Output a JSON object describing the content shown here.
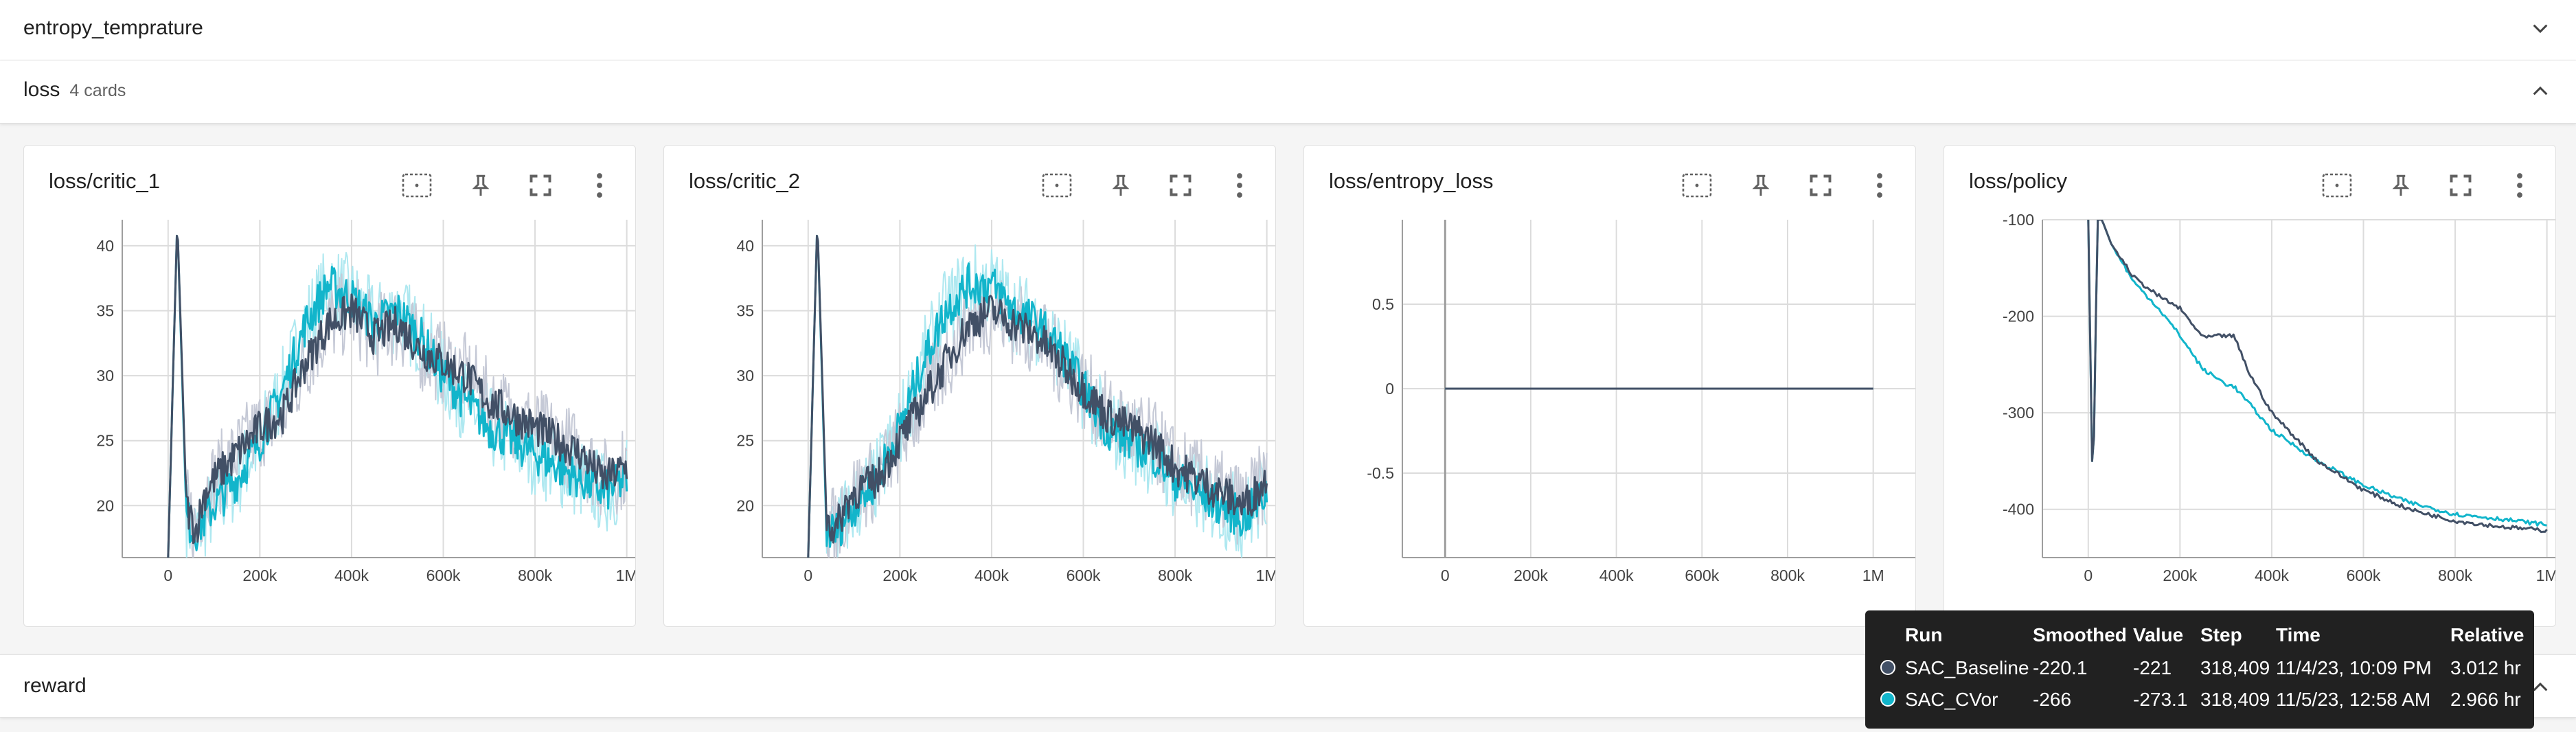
{
  "sections": {
    "entropy": {
      "title": "entropy_temprature"
    },
    "loss": {
      "title": "loss",
      "count": "4 cards"
    },
    "reward": {
      "title": "reward"
    }
  },
  "colors": {
    "baseline": "#425066",
    "baseline_raw": "#c5c9d6",
    "cvor": "#12b5cb",
    "cvor_raw": "#aee8f0",
    "grid": "#dcdcdc",
    "axis": "#9e9e9e"
  },
  "icons": [
    "fit-domain-icon",
    "pin-icon",
    "fullscreen-icon",
    "more-vert-icon",
    "chevron-down-icon",
    "chevron-up-icon"
  ],
  "cards": [
    {
      "title": "loss/critic_1"
    },
    {
      "title": "loss/critic_2"
    },
    {
      "title": "loss/entropy_loss"
    },
    {
      "title": "loss/policy"
    }
  ],
  "chart_data": [
    {
      "type": "line",
      "title": "loss/critic_1",
      "x_ticks": [
        "0",
        "200k",
        "400k",
        "600k",
        "800k",
        "1M"
      ],
      "y_ticks": [
        "20",
        "25",
        "30",
        "35",
        "40"
      ],
      "xlim": [
        -100000,
        1020000
      ],
      "ylim": [
        16,
        42
      ],
      "series": [
        {
          "name": "SAC_Baseline",
          "x": [
            0,
            20000,
            40000,
            60000,
            80000,
            100000,
            150000,
            200000,
            250000,
            300000,
            350000,
            400000,
            450000,
            500000,
            550000,
            600000,
            650000,
            700000,
            750000,
            800000,
            850000,
            900000,
            950000,
            1000000
          ],
          "y": [
            16,
            42,
            20,
            18,
            21,
            22,
            24,
            26,
            27,
            31,
            34,
            35,
            33,
            34,
            32,
            31,
            30,
            28,
            27,
            26,
            25,
            24,
            22,
            23
          ]
        },
        {
          "name": "SAC_CVor",
          "x": [
            0,
            20000,
            40000,
            60000,
            80000,
            100000,
            150000,
            200000,
            250000,
            300000,
            350000,
            400000,
            450000,
            500000,
            550000,
            600000,
            650000,
            700000,
            750000,
            800000,
            850000,
            900000,
            950000,
            1000000
          ],
          "y": [
            16,
            42,
            19,
            18,
            19,
            20,
            22,
            25,
            29,
            34,
            37,
            36,
            34,
            35,
            33,
            30,
            28,
            26,
            25,
            24,
            23,
            22,
            21,
            22
          ]
        }
      ]
    },
    {
      "type": "line",
      "title": "loss/critic_2",
      "x_ticks": [
        "0",
        "200k",
        "400k",
        "600k",
        "800k",
        "1M"
      ],
      "y_ticks": [
        "20",
        "25",
        "30",
        "35",
        "40"
      ],
      "xlim": [
        -100000,
        1020000
      ],
      "ylim": [
        16,
        42
      ],
      "series": [
        {
          "name": "SAC_Baseline",
          "x": [
            0,
            20000,
            40000,
            60000,
            80000,
            100000,
            150000,
            200000,
            250000,
            300000,
            350000,
            400000,
            450000,
            500000,
            550000,
            600000,
            650000,
            700000,
            750000,
            800000,
            850000,
            900000,
            950000,
            1000000
          ],
          "y": [
            16,
            42,
            19,
            18,
            20,
            21,
            22,
            25,
            28,
            31,
            34,
            35,
            34,
            33,
            31,
            29,
            27,
            26,
            25,
            23,
            22,
            21,
            20,
            22
          ]
        },
        {
          "name": "SAC_CVor",
          "x": [
            0,
            20000,
            40000,
            60000,
            80000,
            100000,
            150000,
            200000,
            250000,
            300000,
            350000,
            400000,
            450000,
            500000,
            550000,
            600000,
            650000,
            700000,
            750000,
            800000,
            850000,
            900000,
            950000,
            1000000
          ],
          "y": [
            16,
            42,
            18,
            18,
            19,
            20,
            22,
            26,
            31,
            35,
            37,
            37,
            35,
            34,
            32,
            29,
            26,
            25,
            24,
            22,
            21,
            20,
            19,
            21
          ]
        }
      ]
    },
    {
      "type": "line",
      "title": "loss/entropy_loss",
      "x_ticks": [
        "0",
        "200k",
        "400k",
        "600k",
        "800k",
        "1M"
      ],
      "y_ticks": [
        "0.5",
        "0",
        "-0.5"
      ],
      "xlim": [
        -100000,
        1100000
      ],
      "ylim": [
        -1,
        1
      ],
      "series": [
        {
          "name": "SAC_Baseline",
          "x": [
            0,
            1000000
          ],
          "y": [
            0,
            0
          ]
        },
        {
          "name": "SAC_CVor",
          "x": [
            0,
            1000000
          ],
          "y": [
            0,
            0
          ]
        }
      ]
    },
    {
      "type": "line",
      "title": "loss/policy",
      "x_ticks": [
        "0",
        "200k",
        "400k",
        "600k",
        "800k",
        "1M"
      ],
      "y_ticks": [
        "-100",
        "-200",
        "-300",
        "-400"
      ],
      "xlim": [
        -100000,
        1020000
      ],
      "ylim": [
        -450,
        -100
      ],
      "series": [
        {
          "name": "SAC_Baseline",
          "x": [
            0,
            10000,
            20000,
            30000,
            50000,
            100000,
            150000,
            200000,
            250000,
            300000,
            318409,
            350000,
            400000,
            500000,
            600000,
            700000,
            800000,
            900000,
            1000000
          ],
          "y": [
            -100,
            -400,
            -100,
            -100,
            -125,
            -160,
            -178,
            -192,
            -222,
            -220,
            -221,
            -258,
            -300,
            -350,
            -380,
            -400,
            -412,
            -418,
            -422
          ]
        },
        {
          "name": "SAC_CVor",
          "x": [
            0,
            10000,
            20000,
            30000,
            50000,
            100000,
            150000,
            200000,
            250000,
            300000,
            318409,
            350000,
            400000,
            500000,
            600000,
            700000,
            800000,
            900000,
            1000000
          ],
          "y": [
            -100,
            -400,
            -100,
            -100,
            -125,
            -165,
            -190,
            -220,
            -255,
            -270,
            -273,
            -290,
            -318,
            -350,
            -375,
            -393,
            -405,
            -410,
            -416
          ]
        }
      ]
    }
  ],
  "tooltip": {
    "headers": [
      "Run",
      "Smoothed",
      "Value",
      "Step",
      "Time",
      "Relative"
    ],
    "rows": [
      {
        "run": "SAC_Baseline",
        "smoothed": "-220.1",
        "value": "-221",
        "step": "318,409",
        "time": "11/4/23, 10:09 PM",
        "relative": "3.012 hr"
      },
      {
        "run": "SAC_CVor",
        "smoothed": "-266",
        "value": "-273.1",
        "step": "318,409",
        "time": "11/5/23, 12:58 AM",
        "relative": "2.966 hr"
      }
    ]
  }
}
